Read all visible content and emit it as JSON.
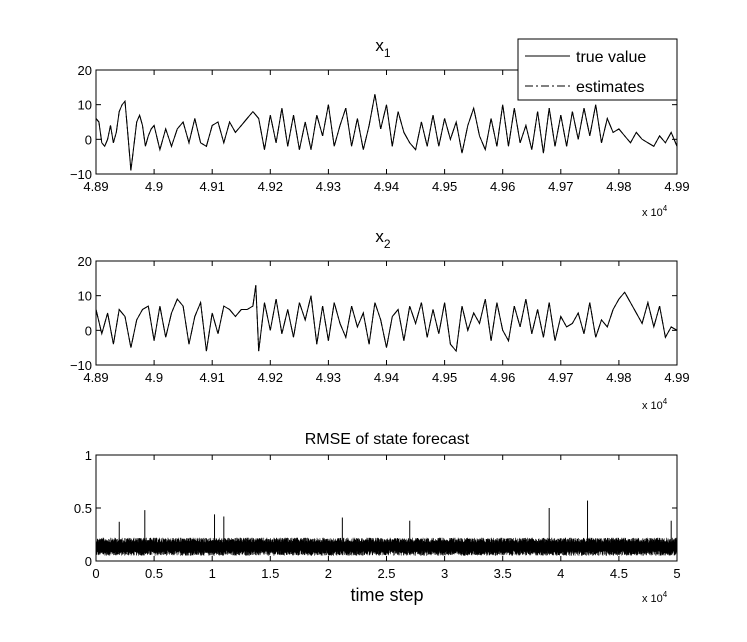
{
  "chart_data": [
    {
      "type": "line",
      "title": "x",
      "title_subscript": "1",
      "xlabel": "",
      "ylabel": "",
      "xlim": [
        48900,
        49900
      ],
      "ylim": [
        -10,
        20
      ],
      "x_ticks": [
        48900,
        49000,
        49100,
        49200,
        49300,
        49400,
        49500,
        49600,
        49700,
        49800,
        49900
      ],
      "x_tick_labels": [
        "4.89",
        "4.9",
        "4.91",
        "4.92",
        "4.93",
        "4.94",
        "4.95",
        "4.96",
        "4.97",
        "4.98",
        "4.99"
      ],
      "y_ticks": [
        -10,
        0,
        10,
        20
      ],
      "y_tick_labels": [
        "−10",
        "0",
        "10",
        "20"
      ],
      "x_exponent_base": "x 10",
      "x_exponent_power": "4",
      "legend": {
        "placement": "top-right",
        "entries": [
          {
            "label": "true value",
            "style": "solid"
          },
          {
            "label": "estimates",
            "style": "dash-dot"
          }
        ]
      },
      "series": [
        {
          "name": "true value",
          "x": [
            48900,
            48905,
            48910,
            48915,
            48920,
            48925,
            48930,
            48935,
            48940,
            48945,
            48950,
            48955,
            48960,
            48965,
            48970,
            48975,
            48980,
            48985,
            48990,
            48995,
            49000,
            49010,
            49020,
            49030,
            49040,
            49050,
            49060,
            49070,
            49080,
            49090,
            49100,
            49110,
            49120,
            49130,
            49140,
            49150,
            49160,
            49170,
            49180,
            49190,
            49200,
            49210,
            49220,
            49230,
            49240,
            49250,
            49260,
            49270,
            49280,
            49290,
            49300,
            49310,
            49320,
            49330,
            49340,
            49350,
            49360,
            49370,
            49380,
            49390,
            49400,
            49410,
            49420,
            49430,
            49440,
            49450,
            49460,
            49470,
            49480,
            49490,
            49500,
            49510,
            49520,
            49530,
            49540,
            49550,
            49560,
            49570,
            49580,
            49590,
            49600,
            49610,
            49620,
            49630,
            49640,
            49650,
            49660,
            49670,
            49680,
            49690,
            49700,
            49710,
            49720,
            49730,
            49740,
            49750,
            49760,
            49770,
            49780,
            49790,
            49800,
            49810,
            49820,
            49830,
            49840,
            49850,
            49860,
            49870,
            49880,
            49890,
            49900
          ],
          "y": [
            6,
            5,
            -1,
            -2,
            0,
            4,
            -1,
            2,
            8,
            10,
            11,
            1,
            -9,
            -2,
            5,
            7,
            4,
            -2,
            1,
            3,
            4,
            -3,
            3,
            -2,
            3,
            5,
            -1,
            6,
            -1,
            -2,
            4,
            5,
            -1,
            5,
            2,
            4,
            6,
            8,
            6,
            -3,
            7,
            -1,
            9,
            -2,
            7,
            -3,
            5,
            -3,
            7,
            1,
            10,
            -2,
            4,
            9,
            -2,
            6,
            -3,
            4,
            13,
            3,
            10,
            -2,
            8,
            2,
            -1,
            -3,
            5,
            -2,
            7,
            -2,
            6,
            0,
            5,
            -4,
            4,
            9,
            1,
            -3,
            6,
            -2,
            10,
            -2,
            9,
            -1,
            4,
            -3,
            8,
            -4,
            9,
            -2,
            7,
            -2,
            8,
            0,
            9,
            1,
            10,
            -1,
            6,
            2,
            3,
            1,
            -1,
            2,
            0,
            -1,
            -2,
            1,
            -1,
            2,
            -2
          ]
        },
        {
          "name": "estimates",
          "x": [
            48900,
            48905,
            48910,
            48915,
            48920,
            48925,
            48930,
            48935,
            48940,
            48945,
            48950,
            48955,
            48960,
            48965,
            48970,
            48975,
            48980,
            48985,
            48990,
            48995,
            49000,
            49010,
            49020,
            49030,
            49040,
            49050,
            49060,
            49070,
            49080,
            49090,
            49100,
            49110,
            49120,
            49130,
            49140,
            49150,
            49160,
            49170,
            49180,
            49190,
            49200,
            49210,
            49220,
            49230,
            49240,
            49250,
            49260,
            49270,
            49280,
            49290,
            49300,
            49310,
            49320,
            49330,
            49340,
            49350,
            49360,
            49370,
            49380,
            49390,
            49400,
            49410,
            49420,
            49430,
            49440,
            49450,
            49460,
            49470,
            49480,
            49490,
            49500,
            49510,
            49520,
            49530,
            49540,
            49550,
            49560,
            49570,
            49580,
            49590,
            49600,
            49610,
            49620,
            49630,
            49640,
            49650,
            49660,
            49670,
            49680,
            49690,
            49700,
            49710,
            49720,
            49730,
            49740,
            49750,
            49760,
            49770,
            49780,
            49790,
            49800,
            49810,
            49820,
            49830,
            49840,
            49850,
            49860,
            49870,
            49880,
            49890,
            49900
          ],
          "y": [
            6,
            5,
            -1,
            -2,
            0,
            4,
            -1,
            2,
            8,
            10,
            11,
            1,
            -9,
            -2,
            5,
            7,
            4,
            -2,
            1,
            3,
            4,
            -3,
            3,
            -2,
            3,
            5,
            -1,
            6,
            -1,
            -2,
            4,
            5,
            -1,
            5,
            2,
            4,
            6,
            8,
            6,
            -3,
            7,
            -1,
            9,
            -2,
            7,
            -3,
            5,
            -3,
            7,
            1,
            10,
            -2,
            4,
            9,
            -2,
            6,
            -3,
            4,
            13,
            3,
            10,
            -2,
            8,
            2,
            -1,
            -3,
            5,
            -2,
            7,
            -2,
            6,
            0,
            5,
            -4,
            4,
            9,
            1,
            -3,
            6,
            -2,
            10,
            -2,
            9,
            -1,
            4,
            -3,
            8,
            -4,
            9,
            -2,
            7,
            -2,
            8,
            0,
            9,
            1,
            10,
            -1,
            6,
            2,
            3,
            1,
            -1,
            2,
            0,
            -1,
            -2,
            1,
            -1,
            2,
            -2
          ]
        }
      ]
    },
    {
      "type": "line",
      "title": "x",
      "title_subscript": "2",
      "xlabel": "",
      "ylabel": "",
      "xlim": [
        48900,
        49900
      ],
      "ylim": [
        -10,
        20
      ],
      "x_ticks": [
        48900,
        49000,
        49100,
        49200,
        49300,
        49400,
        49500,
        49600,
        49700,
        49800,
        49900
      ],
      "x_tick_labels": [
        "4.89",
        "4.9",
        "4.91",
        "4.92",
        "4.93",
        "4.94",
        "4.95",
        "4.96",
        "4.97",
        "4.98",
        "4.99"
      ],
      "y_ticks": [
        -10,
        0,
        10,
        20
      ],
      "y_tick_labels": [
        "−10",
        "0",
        "10",
        "20"
      ],
      "x_exponent_base": "x 10",
      "x_exponent_power": "4",
      "series": [
        {
          "name": "true value",
          "x": [
            48900,
            48910,
            48920,
            48930,
            48940,
            48950,
            48960,
            48970,
            48980,
            48990,
            49000,
            49010,
            49020,
            49030,
            49040,
            49050,
            49060,
            49070,
            49080,
            49090,
            49100,
            49110,
            49120,
            49130,
            49140,
            49150,
            49160,
            49170,
            49175,
            49180,
            49190,
            49200,
            49210,
            49220,
            49230,
            49240,
            49250,
            49260,
            49270,
            49280,
            49290,
            49300,
            49310,
            49320,
            49330,
            49340,
            49350,
            49360,
            49370,
            49380,
            49390,
            49400,
            49410,
            49420,
            49430,
            49440,
            49450,
            49460,
            49470,
            49480,
            49490,
            49500,
            49510,
            49520,
            49530,
            49540,
            49550,
            49560,
            49570,
            49580,
            49590,
            49600,
            49610,
            49620,
            49630,
            49640,
            49650,
            49660,
            49670,
            49680,
            49690,
            49700,
            49710,
            49720,
            49730,
            49740,
            49750,
            49760,
            49770,
            49780,
            49790,
            49800,
            49810,
            49820,
            49830,
            49840,
            49850,
            49860,
            49870,
            49880,
            49890,
            49900
          ],
          "y": [
            6,
            -1,
            5,
            -4,
            6,
            4,
            -5,
            3,
            6,
            7,
            -3,
            7,
            -2,
            5,
            9,
            7,
            -4,
            4,
            8,
            -6,
            5,
            -1,
            7,
            6,
            4,
            6,
            6,
            7,
            13,
            -6,
            8,
            0,
            9,
            -1,
            6,
            -2,
            8,
            3,
            10,
            -4,
            7,
            -3,
            8,
            2,
            -2,
            7,
            1,
            5,
            -4,
            8,
            3,
            -5,
            4,
            6,
            -3,
            7,
            2,
            8,
            -2,
            6,
            -1,
            8,
            -4,
            -6,
            7,
            0,
            5,
            2,
            9,
            -3,
            8,
            0,
            -3,
            7,
            1,
            9,
            -1,
            6,
            -2,
            8,
            -3,
            4,
            1,
            2,
            5,
            -1,
            8,
            -2,
            3,
            1,
            6,
            9,
            11,
            8,
            5,
            2,
            8,
            1,
            7,
            -2,
            1,
            0
          ]
        },
        {
          "name": "estimates",
          "x": [
            48900,
            48910,
            48920,
            48930,
            48940,
            48950,
            48960,
            48970,
            48980,
            48990,
            49000,
            49010,
            49020,
            49030,
            49040,
            49050,
            49060,
            49070,
            49080,
            49090,
            49100,
            49110,
            49120,
            49130,
            49140,
            49150,
            49160,
            49170,
            49175,
            49180,
            49190,
            49200,
            49210,
            49220,
            49230,
            49240,
            49250,
            49260,
            49270,
            49280,
            49290,
            49300,
            49310,
            49320,
            49330,
            49340,
            49350,
            49360,
            49370,
            49380,
            49390,
            49400,
            49410,
            49420,
            49430,
            49440,
            49450,
            49460,
            49470,
            49480,
            49490,
            49500,
            49510,
            49520,
            49530,
            49540,
            49550,
            49560,
            49570,
            49580,
            49590,
            49600,
            49610,
            49620,
            49630,
            49640,
            49650,
            49660,
            49670,
            49680,
            49690,
            49700,
            49710,
            49720,
            49730,
            49740,
            49750,
            49760,
            49770,
            49780,
            49790,
            49800,
            49810,
            49820,
            49830,
            49840,
            49850,
            49860,
            49870,
            49880,
            49890,
            49900
          ],
          "y": [
            6,
            -1,
            5,
            -4,
            6,
            4,
            -5,
            3,
            6,
            7,
            -3,
            7,
            -2,
            5,
            9,
            7,
            -4,
            4,
            8,
            -6,
            5,
            -1,
            7,
            6,
            4,
            6,
            6,
            7,
            13,
            -6,
            8,
            0,
            9,
            -1,
            6,
            -2,
            8,
            3,
            10,
            -4,
            7,
            -3,
            8,
            2,
            -2,
            7,
            1,
            5,
            -4,
            8,
            3,
            -5,
            4,
            6,
            -3,
            7,
            2,
            8,
            -2,
            6,
            -1,
            8,
            -4,
            -6,
            7,
            0,
            5,
            2,
            9,
            -3,
            8,
            0,
            -3,
            7,
            1,
            9,
            -1,
            6,
            -2,
            8,
            -3,
            4,
            1,
            2,
            5,
            -1,
            8,
            -2,
            3,
            1,
            6,
            9,
            11,
            8,
            5,
            2,
            8,
            1,
            7,
            -2,
            1,
            0
          ]
        }
      ]
    },
    {
      "type": "line",
      "title": "RMSE of state forecast",
      "xlabel": "time step",
      "ylabel": "",
      "xlim": [
        0,
        50000
      ],
      "ylim": [
        0,
        1
      ],
      "x_ticks": [
        0,
        5000,
        10000,
        15000,
        20000,
        25000,
        30000,
        35000,
        40000,
        45000,
        50000
      ],
      "x_tick_labels": [
        "0",
        "0.5",
        "1",
        "1.5",
        "2",
        "2.5",
        "3",
        "3.5",
        "4",
        "4.5",
        "5"
      ],
      "y_ticks": [
        0,
        0.5,
        1
      ],
      "y_tick_labels": [
        "0",
        "0.5",
        "1"
      ],
      "x_exponent_base": "x 10",
      "x_exponent_power": "4",
      "series": [
        {
          "name": "RMSE",
          "summary": {
            "typical_min": 0.05,
            "typical_max": 0.22,
            "n_points": 50000
          },
          "peaks": [
            {
              "x": 2000,
              "y": 0.37
            },
            {
              "x": 4200,
              "y": 0.48
            },
            {
              "x": 10200,
              "y": 0.44
            },
            {
              "x": 11000,
              "y": 0.42
            },
            {
              "x": 21200,
              "y": 0.41
            },
            {
              "x": 27000,
              "y": 0.38
            },
            {
              "x": 39000,
              "y": 0.5
            },
            {
              "x": 42300,
              "y": 0.57
            },
            {
              "x": 49500,
              "y": 0.38
            }
          ]
        }
      ]
    }
  ]
}
